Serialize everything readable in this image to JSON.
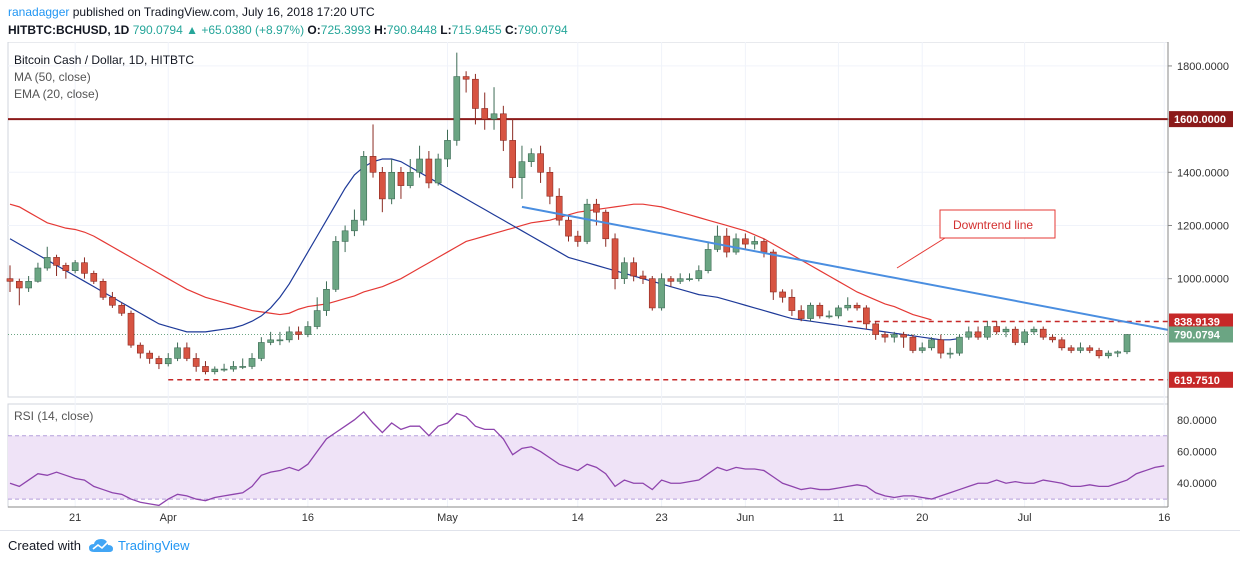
{
  "header": {
    "author": "ranadagger",
    "published_text": "published on TradingView.com, July 16, 2018 17:20 UTC",
    "symbol_line": "HITBTC:BCHUSD, 1D",
    "close_value": "790.0794",
    "change_text": "+65.0380 (+8.97%)",
    "open_label": "O:",
    "open_value": "725.3993",
    "high_label": "H:",
    "high_value": "790.8448",
    "low_label": "L:",
    "low_value": "715.9455",
    "c_label": "C:",
    "c_value": "790.0794"
  },
  "legend": {
    "title": "Bitcoin Cash / Dollar, 1D, HITBTC",
    "ma": "MA (50, close)",
    "ema": "EMA (20, close)",
    "rsi": "RSI (14, close)"
  },
  "annotation": "Downtrend line",
  "footer": {
    "created_with": "Created with",
    "brand": "TradingView"
  },
  "colors": {
    "up": "#26a69a",
    "up_fill": "#6ba583",
    "down": "#d75442",
    "ma": "#e53935",
    "ema": "#1e3a99",
    "trend": "#4a8ee0",
    "resistance": "#8b1a1a",
    "dashed": "#c62828",
    "rsi": "#8e44ad",
    "rsi_fill": "#efe3f7"
  },
  "chart_data": {
    "type": "candlestick",
    "title": "Bitcoin Cash / Dollar, 1D, HITBTC",
    "price_ticks": [
      1000,
      1200,
      1400,
      1600,
      1800
    ],
    "price_tick_labels": [
      "1000.0000",
      "1200.0000",
      "1400.0000",
      "1600.0000",
      "1800.0000"
    ],
    "price_range": [
      555,
      1890
    ],
    "x_labels": [
      {
        "label": "21",
        "index": 7
      },
      {
        "label": "Apr",
        "index": 17
      },
      {
        "label": "16",
        "index": 32
      },
      {
        "label": "May",
        "index": 47
      },
      {
        "label": "14",
        "index": 61
      },
      {
        "label": "23",
        "index": 70
      },
      {
        "label": "Jun",
        "index": 79
      },
      {
        "label": "11",
        "index": 89
      },
      {
        "label": "20",
        "index": 98
      },
      {
        "label": "Jul",
        "index": 109
      },
      {
        "label": "16",
        "index": 124
      }
    ],
    "candles": [
      [
        1000,
        990,
        1050,
        950
      ],
      [
        990,
        965,
        1000,
        900
      ],
      [
        965,
        990,
        1010,
        950
      ],
      [
        990,
        1040,
        1060,
        985
      ],
      [
        1040,
        1080,
        1120,
        1030
      ],
      [
        1080,
        1050,
        1090,
        1010
      ],
      [
        1050,
        1030,
        1060,
        1000
      ],
      [
        1030,
        1060,
        1070,
        1020
      ],
      [
        1060,
        1020,
        1080,
        1000
      ],
      [
        1020,
        990,
        1030,
        980
      ],
      [
        990,
        930,
        1000,
        920
      ],
      [
        930,
        900,
        950,
        890
      ],
      [
        900,
        870,
        910,
        860
      ],
      [
        870,
        750,
        880,
        740
      ],
      [
        750,
        720,
        760,
        700
      ],
      [
        720,
        700,
        730,
        680
      ],
      [
        700,
        680,
        710,
        660
      ],
      [
        680,
        700,
        720,
        670
      ],
      [
        700,
        740,
        760,
        690
      ],
      [
        740,
        700,
        760,
        690
      ],
      [
        700,
        670,
        720,
        650
      ],
      [
        670,
        650,
        690,
        640
      ],
      [
        650,
        660,
        670,
        640
      ],
      [
        660,
        660,
        680,
        650
      ],
      [
        660,
        670,
        690,
        650
      ],
      [
        670,
        670,
        700,
        660
      ],
      [
        670,
        700,
        720,
        660
      ],
      [
        700,
        760,
        780,
        690
      ],
      [
        760,
        770,
        800,
        750
      ],
      [
        770,
        770,
        800,
        750
      ],
      [
        770,
        800,
        820,
        760
      ],
      [
        800,
        790,
        820,
        770
      ],
      [
        790,
        820,
        840,
        780
      ],
      [
        820,
        880,
        930,
        810
      ],
      [
        880,
        960,
        990,
        860
      ],
      [
        960,
        1140,
        1160,
        950
      ],
      [
        1140,
        1180,
        1200,
        1100
      ],
      [
        1180,
        1220,
        1260,
        1160
      ],
      [
        1220,
        1460,
        1480,
        1200
      ],
      [
        1460,
        1400,
        1580,
        1380
      ],
      [
        1400,
        1300,
        1420,
        1250
      ],
      [
        1300,
        1400,
        1450,
        1280
      ],
      [
        1400,
        1350,
        1420,
        1300
      ],
      [
        1350,
        1400,
        1450,
        1340
      ],
      [
        1400,
        1450,
        1500,
        1380
      ],
      [
        1450,
        1360,
        1480,
        1340
      ],
      [
        1360,
        1450,
        1470,
        1350
      ],
      [
        1450,
        1520,
        1560,
        1420
      ],
      [
        1520,
        1760,
        1850,
        1500
      ],
      [
        1760,
        1750,
        1780,
        1700
      ],
      [
        1750,
        1640,
        1770,
        1580
      ],
      [
        1640,
        1600,
        1700,
        1560
      ],
      [
        1600,
        1620,
        1720,
        1560
      ],
      [
        1620,
        1520,
        1650,
        1480
      ],
      [
        1520,
        1380,
        1600,
        1340
      ],
      [
        1380,
        1440,
        1500,
        1300
      ],
      [
        1440,
        1470,
        1490,
        1420
      ],
      [
        1470,
        1400,
        1500,
        1360
      ],
      [
        1400,
        1310,
        1420,
        1280
      ],
      [
        1310,
        1220,
        1340,
        1200
      ],
      [
        1220,
        1160,
        1240,
        1140
      ],
      [
        1160,
        1140,
        1180,
        1120
      ],
      [
        1140,
        1280,
        1300,
        1130
      ],
      [
        1280,
        1250,
        1300,
        1200
      ],
      [
        1250,
        1150,
        1260,
        1120
      ],
      [
        1150,
        1000,
        1170,
        960
      ],
      [
        1000,
        1060,
        1080,
        980
      ],
      [
        1060,
        1010,
        1080,
        990
      ],
      [
        1010,
        1000,
        1030,
        980
      ],
      [
        1000,
        890,
        1010,
        880
      ],
      [
        890,
        1000,
        1020,
        880
      ],
      [
        1000,
        990,
        1010,
        970
      ],
      [
        990,
        1000,
        1020,
        980
      ],
      [
        1000,
        1000,
        1020,
        990
      ],
      [
        1000,
        1030,
        1050,
        990
      ],
      [
        1030,
        1110,
        1140,
        1020
      ],
      [
        1110,
        1160,
        1200,
        1100
      ],
      [
        1160,
        1100,
        1190,
        1080
      ],
      [
        1100,
        1150,
        1170,
        1090
      ],
      [
        1150,
        1130,
        1170,
        1110
      ],
      [
        1130,
        1140,
        1160,
        1110
      ],
      [
        1140,
        1100,
        1150,
        1080
      ],
      [
        1100,
        950,
        1110,
        920
      ],
      [
        950,
        930,
        960,
        910
      ],
      [
        930,
        880,
        960,
        860
      ],
      [
        880,
        850,
        900,
        840
      ],
      [
        850,
        900,
        910,
        840
      ],
      [
        900,
        860,
        910,
        850
      ],
      [
        860,
        860,
        880,
        850
      ],
      [
        860,
        890,
        900,
        850
      ],
      [
        890,
        900,
        930,
        880
      ],
      [
        900,
        890,
        910,
        880
      ],
      [
        890,
        830,
        900,
        810
      ],
      [
        830,
        790,
        840,
        770
      ],
      [
        790,
        780,
        800,
        760
      ],
      [
        780,
        790,
        800,
        760
      ],
      [
        790,
        780,
        800,
        740
      ],
      [
        780,
        730,
        790,
        720
      ],
      [
        730,
        740,
        760,
        720
      ],
      [
        740,
        770,
        780,
        730
      ],
      [
        770,
        720,
        790,
        700
      ],
      [
        720,
        720,
        740,
        700
      ],
      [
        720,
        780,
        790,
        710
      ],
      [
        780,
        800,
        820,
        770
      ],
      [
        800,
        780,
        820,
        770
      ],
      [
        780,
        820,
        840,
        770
      ],
      [
        820,
        800,
        840,
        790
      ],
      [
        800,
        810,
        820,
        780
      ],
      [
        810,
        760,
        820,
        750
      ],
      [
        760,
        800,
        810,
        750
      ],
      [
        800,
        810,
        820,
        790
      ],
      [
        810,
        780,
        820,
        770
      ],
      [
        780,
        770,
        790,
        760
      ],
      [
        770,
        740,
        780,
        730
      ],
      [
        740,
        730,
        750,
        720
      ],
      [
        730,
        740,
        760,
        720
      ],
      [
        740,
        730,
        750,
        720
      ],
      [
        730,
        710,
        740,
        700
      ],
      [
        710,
        720,
        730,
        700
      ],
      [
        720,
        725,
        730,
        705
      ],
      [
        725,
        790,
        791,
        716
      ]
    ],
    "series": [
      {
        "name": "MA (50, close)",
        "values": [
          1280,
          1270,
          1250,
          1230,
          1210,
          1200,
          1190,
          1185,
          1175,
          1160,
          1140,
          1120,
          1100,
          1080,
          1060,
          1040,
          1020,
          1000,
          980,
          960,
          945,
          930,
          920,
          910,
          900,
          890,
          880,
          875,
          870,
          865,
          870,
          885,
          895,
          900,
          905,
          915,
          925,
          935,
          950,
          960,
          970,
          985,
          1000,
          1020,
          1040,
          1060,
          1080,
          1100,
          1120,
          1140,
          1150,
          1160,
          1170,
          1180,
          1190,
          1200,
          1210,
          1215,
          1220,
          1230,
          1240,
          1250,
          1255,
          1260,
          1265,
          1270,
          1275,
          1280,
          1280,
          1275,
          1270,
          1260,
          1250,
          1240,
          1230,
          1220,
          1210,
          1200,
          1190,
          1180,
          1165,
          1150,
          1130,
          1110,
          1090,
          1070,
          1050,
          1030,
          1010,
          990,
          970,
          950,
          935,
          920,
          905,
          895,
          880,
          865,
          855,
          845
        ]
      },
      {
        "name": "EMA (20, close)",
        "values": [
          1150,
          1130,
          1110,
          1090,
          1070,
          1050,
          1030,
          1010,
          990,
          970,
          950,
          930,
          910,
          890,
          870,
          850,
          830,
          820,
          810,
          800,
          800,
          800,
          805,
          810,
          815,
          825,
          840,
          860,
          890,
          930,
          980,
          1040,
          1100,
          1160,
          1220,
          1280,
          1340,
          1390,
          1420,
          1440,
          1450,
          1450,
          1440,
          1420,
          1400,
          1380,
          1360,
          1340,
          1320,
          1300,
          1280,
          1260,
          1240,
          1220,
          1200,
          1180,
          1160,
          1140,
          1120,
          1100,
          1080,
          1070,
          1060,
          1050,
          1040,
          1030,
          1020,
          1010,
          1000,
          990,
          980,
          970,
          960,
          950,
          940,
          935,
          930,
          920,
          910,
          900,
          890,
          880,
          870,
          860,
          850,
          845,
          840,
          835,
          830,
          825,
          820,
          815,
          810,
          805,
          800,
          795,
          790,
          785,
          780,
          775,
          770,
          770,
          775
        ]
      },
      {
        "name": "RSI (14, close)",
        "values": [
          40,
          38,
          42,
          46,
          45,
          47,
          45,
          43,
          42,
          38,
          36,
          34,
          33,
          30,
          28,
          27,
          26,
          30,
          33,
          32,
          30,
          29,
          31,
          32,
          33,
          34,
          38,
          45,
          47,
          48,
          50,
          48,
          52,
          60,
          68,
          72,
          76,
          80,
          85,
          78,
          72,
          78,
          74,
          76,
          76,
          70,
          76,
          78,
          84,
          82,
          76,
          74,
          74,
          68,
          58,
          62,
          63,
          60,
          56,
          52,
          50,
          48,
          52,
          50,
          46,
          38,
          42,
          40,
          40,
          36,
          42,
          40,
          40,
          41,
          42,
          46,
          50,
          48,
          50,
          49,
          49,
          48,
          44,
          40,
          38,
          36,
          37,
          36,
          36,
          37,
          38,
          39,
          38,
          34,
          32,
          31,
          32,
          32,
          31,
          30,
          32,
          34,
          36,
          38,
          40,
          40,
          42,
          40,
          41,
          40,
          40,
          42,
          41,
          40,
          38,
          38,
          39,
          38,
          38,
          40,
          42,
          46,
          48,
          50,
          51
        ]
      }
    ],
    "rsi_ticks": [
      40,
      60,
      80
    ],
    "rsi_tick_labels": [
      "40.0000",
      "60.0000",
      "80.0000"
    ],
    "rsi_range": [
      25,
      90
    ],
    "rsi_band": [
      30,
      70
    ],
    "levels": [
      {
        "value": 1600,
        "label": "1600.0000",
        "style": "solid"
      },
      {
        "value": 838.9139,
        "label": "838.9139",
        "style": "dashed"
      },
      {
        "value": 619.751,
        "label": "619.7510",
        "style": "dashed"
      }
    ],
    "last_price": 790.0794,
    "last_price_label": "790.0794",
    "downtrend_line": {
      "from": [
        55,
        1270
      ],
      "to": [
        124,
        810
      ]
    },
    "support_dash_from": 17,
    "resistance_dash_from": 90
  }
}
